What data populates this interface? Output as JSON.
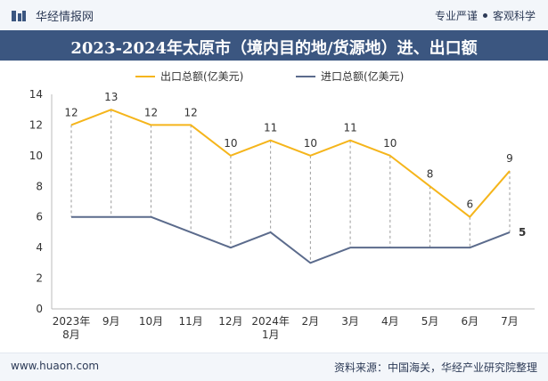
{
  "header": {
    "brand": "华经情报网",
    "tag1": "专业严谨",
    "tag2": "客观科学"
  },
  "title": "2023-2024年太原市（境内目的地/货源地）进、出口额",
  "footer": {
    "left": "www.huaon.com",
    "right": "资料来源：中国海关，华经产业研究院整理"
  },
  "colors": {
    "export": "#f5b51b",
    "import": "#5b6b8c",
    "title_bg": "#3b5680"
  },
  "chart_data": {
    "type": "line",
    "categories": [
      [
        "2023年",
        "8月"
      ],
      [
        "9月"
      ],
      [
        "10月"
      ],
      [
        "11月"
      ],
      [
        "12月"
      ],
      [
        "2024年",
        "1月"
      ],
      [
        "2月"
      ],
      [
        "3月"
      ],
      [
        "4月"
      ],
      [
        "5月"
      ],
      [
        "6月"
      ],
      [
        "7月"
      ]
    ],
    "series": [
      {
        "name": "出口总额(亿美元)",
        "values": [
          12,
          13,
          12,
          12,
          10,
          11,
          10,
          11,
          10,
          8,
          6,
          9
        ]
      },
      {
        "name": "进口总额(亿美元)",
        "values": [
          6,
          6,
          6,
          5,
          4,
          5,
          3,
          4,
          4,
          4,
          4,
          5
        ]
      }
    ],
    "series_labels": [
      [
        "12",
        "13",
        "12",
        "12",
        "10",
        "11",
        "10",
        "11",
        "10",
        "8",
        "6",
        "9"
      ],
      [
        "",
        "",
        "",
        "",
        "",
        "",
        "",
        "",
        "",
        "",
        "",
        "5"
      ]
    ],
    "ylim": [
      0,
      14
    ],
    "yticks": [
      0,
      2,
      4,
      6,
      8,
      10,
      12,
      14
    ],
    "grid": false,
    "legend_position": "top"
  }
}
